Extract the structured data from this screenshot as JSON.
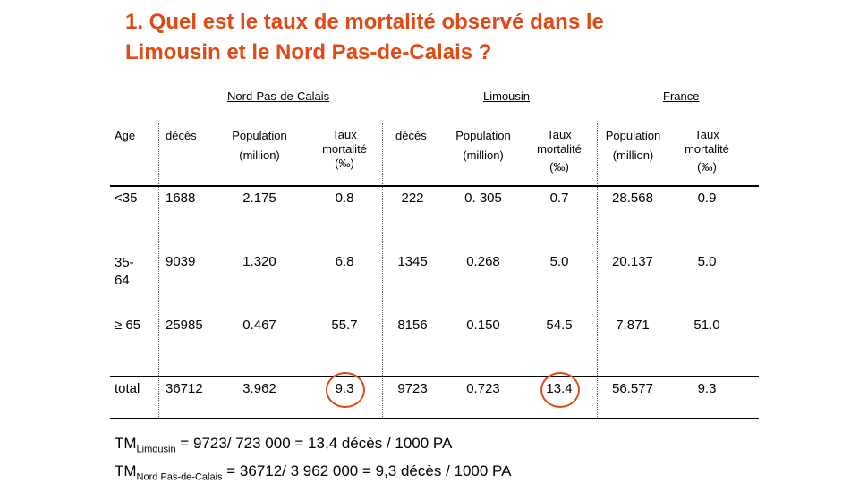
{
  "title": {
    "line1": "1. Quel est le taux de mortalité observé dans le",
    "line2": "Limousin et le Nord Pas-de-Calais ?"
  },
  "groups": {
    "npdc": "Nord-Pas-de-Calais",
    "limousin": "Limousin",
    "france": "France"
  },
  "headers": {
    "age": "Age",
    "deces": "décès",
    "population_line1": "Population",
    "population_line2": "(million)",
    "taux_line1": "Taux",
    "taux_line2": "mortalité",
    "taux_line3": "(‰)"
  },
  "rows": [
    {
      "age": "<35",
      "npdc_deces": "1688",
      "npdc_pop": "2.175",
      "npdc_taux": "0.8",
      "lim_deces": "222",
      "lim_pop": "0. 305",
      "lim_taux": "0.7",
      "fr_pop": "28.568",
      "fr_taux": "0.9"
    },
    {
      "age_line1": "35-",
      "age_line2": "64",
      "npdc_deces": "9039",
      "npdc_pop": "1.320",
      "npdc_taux": "6.8",
      "lim_deces": "1345",
      "lim_pop": "0.268",
      "lim_taux": "5.0",
      "fr_pop": "20.137",
      "fr_taux": "5.0"
    },
    {
      "age": "≥ 65",
      "npdc_deces": "25985",
      "npdc_pop": "0.467",
      "npdc_taux": "55.7",
      "lim_deces": "8156",
      "lim_pop": "0.150",
      "lim_taux": "54.5",
      "fr_pop": "7.871",
      "fr_taux": "51.0"
    },
    {
      "age": "total",
      "npdc_deces": "36712",
      "npdc_pop": "3.962",
      "npdc_taux": "9.3",
      "lim_deces": "9723",
      "lim_pop": "0.723",
      "lim_taux": "13.4",
      "fr_pop": "56.577",
      "fr_taux": "9.3"
    }
  ],
  "formulas": {
    "f1_main": "TM",
    "f1_sub": "Limousin",
    "f1_rest": " = 9723/ 723 000 = 13,4 décès / 1000 PA",
    "f2_main": "TM",
    "f2_sub": "Nord Pas-de-Calais",
    "f2_rest": " = 36712/ 3 962 000 = 9,3 décès / 1000 PA"
  },
  "colors": {
    "accent": "#e04a14"
  }
}
